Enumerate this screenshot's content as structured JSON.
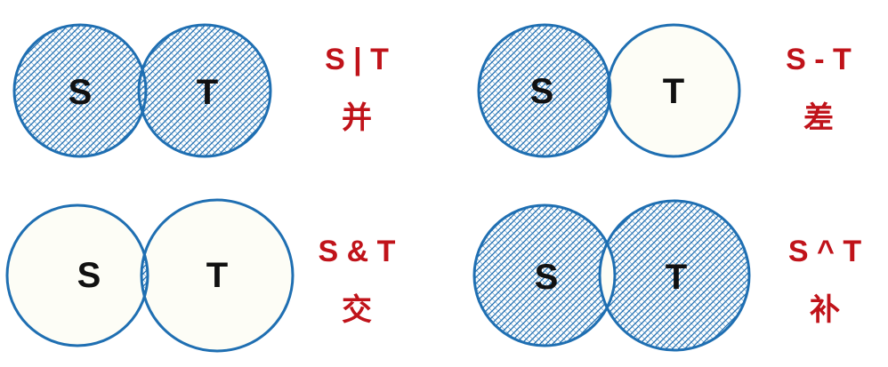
{
  "colors": {
    "outline": "#1f6fb2",
    "hatch": "#1f6fb2",
    "fill_light": "#fdfdf6",
    "label": "#c0131a"
  },
  "diagrams": [
    {
      "operation": "union",
      "set_a": "S",
      "set_b": "T",
      "symbol": "S | T",
      "name": "并",
      "shaded": [
        "left",
        "middle",
        "right"
      ]
    },
    {
      "operation": "difference",
      "set_a": "S",
      "set_b": "T",
      "symbol": "S - T",
      "name": "差",
      "shaded": [
        "left"
      ]
    },
    {
      "operation": "intersection",
      "set_a": "S",
      "set_b": "T",
      "symbol": "S & T",
      "name": "交",
      "shaded": [
        "middle"
      ]
    },
    {
      "operation": "symmetric-difference",
      "set_a": "S",
      "set_b": "T",
      "symbol": "S ^ T",
      "name": "补",
      "shaded": [
        "left",
        "right"
      ]
    }
  ]
}
